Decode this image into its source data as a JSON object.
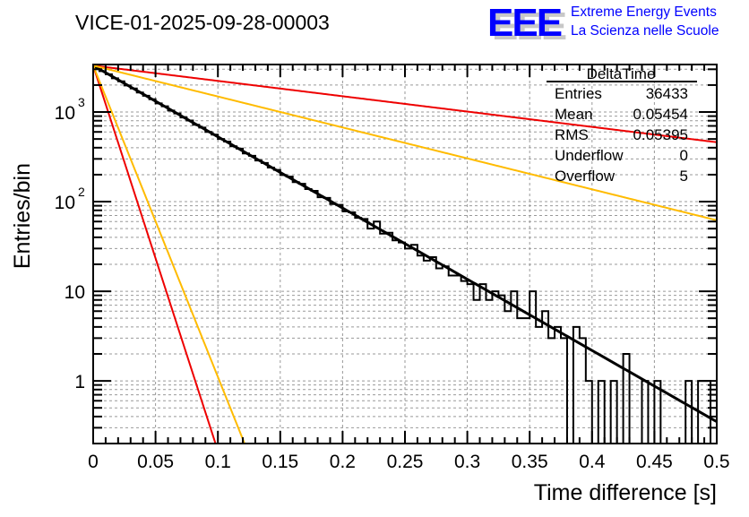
{
  "header": {
    "title": "VICE-01-2025-09-28-00003",
    "logo_text": "EEE",
    "logo_line1": "Extreme Energy Events",
    "logo_line2": "La Scienza nelle Scuole"
  },
  "stats": {
    "name": "DeltaTime",
    "rows": [
      {
        "label": "Entries",
        "value": "36433"
      },
      {
        "label": "Mean",
        "value": "0.05454"
      },
      {
        "label": "RMS",
        "value": "0.05395"
      },
      {
        "label": "Underflow",
        "value": "0"
      },
      {
        "label": "Overflow",
        "value": "5"
      }
    ]
  },
  "colors": {
    "hist": "#000000",
    "fit": "#000000",
    "red": "#ee0000",
    "yellow": "#ffbb00",
    "grid": "#999999",
    "logo": "#0000ff"
  },
  "chart_data": {
    "type": "histogram",
    "xlabel": "Time difference [s]",
    "ylabel": "Entries/bin",
    "xlim": [
      0,
      0.5
    ],
    "ylim": [
      0.2,
      3390
    ],
    "yscale": "log",
    "grid": true,
    "bin_width": 0.005,
    "x_ticks": [
      "0",
      "0.05",
      "0.1",
      "0.15",
      "0.2",
      "0.25",
      "0.3",
      "0.35",
      "0.4",
      "0.45",
      "0.5"
    ],
    "y_ticks": [
      {
        "value": 1,
        "label": "1"
      },
      {
        "value": 10,
        "label": "10"
      },
      {
        "value": 100,
        "label": "10",
        "exp": "2"
      },
      {
        "value": 1000,
        "label": "10",
        "exp": "3"
      }
    ],
    "counts": [
      3160,
      2860,
      2640,
      2380,
      2200,
      1980,
      1830,
      1650,
      1520,
      1390,
      1250,
      1160,
      1040,
      965,
      870,
      805,
      720,
      670,
      600,
      560,
      500,
      468,
      415,
      390,
      345,
      325,
      288,
      270,
      240,
      226,
      198,
      190,
      165,
      158,
      138,
      132,
      112,
      110,
      94,
      92,
      78,
      76,
      66,
      64,
      50,
      60,
      44,
      45,
      37,
      35,
      30,
      33,
      25,
      22,
      24,
      18,
      19,
      15,
      15,
      13,
      12,
      8,
      12,
      8,
      10,
      9,
      6,
      10,
      5,
      5,
      10,
      4,
      6,
      3,
      4,
      3,
      0,
      4,
      3,
      1,
      0,
      1,
      0,
      1,
      0,
      2,
      0,
      0,
      1,
      0,
      1,
      0,
      0,
      0,
      0,
      1,
      0,
      1,
      1,
      0
    ],
    "series": [
      {
        "name": "fit",
        "color": "#000000",
        "amplitude": 3300,
        "rate": 18.3
      },
      {
        "name": "red-slow",
        "color": "#ee0000",
        "amplitude": 3300,
        "rate": 3.94
      },
      {
        "name": "yellow-slow",
        "color": "#ffbb00",
        "amplitude": 3300,
        "rate": 7.95
      },
      {
        "name": "red-fast",
        "color": "#ee0000",
        "amplitude": 3300,
        "rate": 99
      },
      {
        "name": "yellow-fast",
        "color": "#ffbb00",
        "amplitude": 3300,
        "rate": 80
      }
    ]
  }
}
